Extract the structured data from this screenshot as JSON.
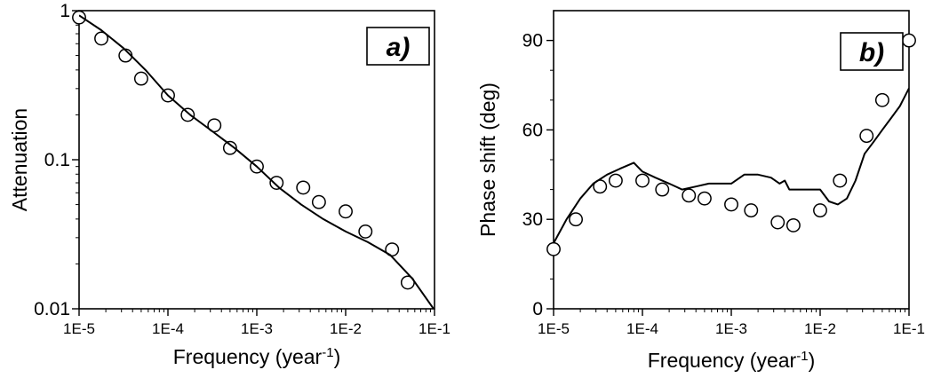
{
  "chart_data": [
    {
      "type": "scatter",
      "panel_label": "a)",
      "xlabel": "Frequency (year",
      "xlabel_sup": "-1",
      "xlabel_close": ")",
      "ylabel": "Attenuation",
      "xscale": "log",
      "yscale": "log",
      "xlim": [
        1e-05,
        0.1
      ],
      "ylim": [
        0.01,
        1
      ],
      "xticks": [
        1e-05,
        0.0001,
        0.001,
        0.01,
        0.1
      ],
      "xtick_labels": [
        "1E-5",
        "1E-4",
        "1E-3",
        "1E-2",
        "1E-1"
      ],
      "yticks": [
        0.01,
        0.1,
        1
      ],
      "ytick_labels": [
        "0.01",
        "0.1",
        "1"
      ],
      "series": [
        {
          "style": "markers",
          "x": [
            1e-05,
            1.78e-05,
            3.33e-05,
            5e-05,
            0.0001,
            0.000167,
            0.000333,
            0.0005,
            0.001,
            0.00167,
            0.00333,
            0.005,
            0.01,
            0.0167,
            0.0333,
            0.05
          ],
          "y": [
            0.9,
            0.65,
            0.5,
            0.35,
            0.27,
            0.2,
            0.17,
            0.12,
            0.09,
            0.07,
            0.065,
            0.052,
            0.045,
            0.033,
            0.025,
            0.015
          ]
        },
        {
          "style": "line",
          "x": [
            1e-05,
            1.78e-05,
            3.16e-05,
            5.6e-05,
            0.0001,
            0.000178,
            0.000316,
            0.00056,
            0.001,
            0.00178,
            0.00316,
            0.0056,
            0.01,
            0.0178,
            0.0316,
            0.056,
            0.1
          ],
          "y": [
            0.93,
            0.74,
            0.56,
            0.4,
            0.27,
            0.2,
            0.155,
            0.12,
            0.09,
            0.065,
            0.05,
            0.04,
            0.033,
            0.028,
            0.023,
            0.016,
            0.0098
          ]
        }
      ]
    },
    {
      "type": "scatter",
      "panel_label": "b)",
      "xlabel": "Frequency (year",
      "xlabel_sup": "-1",
      "xlabel_close": ")",
      "ylabel": "Phase shift (deg)",
      "xscale": "log",
      "yscale": "linear",
      "xlim": [
        1e-05,
        0.1
      ],
      "ylim": [
        0,
        100
      ],
      "xticks": [
        1e-05,
        0.0001,
        0.001,
        0.01,
        0.1
      ],
      "xtick_labels": [
        "1E-5",
        "1E-4",
        "1E-3",
        "1E-2",
        "1E-1"
      ],
      "yticks": [
        0,
        30,
        60,
        90
      ],
      "ytick_labels": [
        "0",
        "30",
        "60",
        "90"
      ],
      "series": [
        {
          "style": "markers",
          "x": [
            1e-05,
            1.78e-05,
            3.33e-05,
            5e-05,
            0.0001,
            0.000167,
            0.000333,
            0.0005,
            0.001,
            0.00167,
            0.00333,
            0.005,
            0.01,
            0.0167,
            0.0333,
            0.05,
            0.1
          ],
          "y": [
            20,
            30,
            41,
            43,
            43,
            40,
            38,
            37,
            35,
            33,
            29,
            28,
            33,
            43,
            58,
            70,
            90
          ]
        },
        {
          "style": "line",
          "x": [
            1e-05,
            1.4e-05,
            2e-05,
            2.8e-05,
            4e-05,
            5.6e-05,
            8e-05,
            0.0001,
            0.00014,
            0.0002,
            0.00028,
            0.0004,
            0.00056,
            0.0008,
            0.001,
            0.0014,
            0.002,
            0.0028,
            0.0035,
            0.004,
            0.0045,
            0.0056,
            0.008,
            0.01,
            0.0126,
            0.0158,
            0.02,
            0.025,
            0.0316,
            0.04,
            0.05,
            0.063,
            0.079,
            0.1
          ],
          "y": [
            22,
            30,
            37,
            42,
            45,
            47,
            49,
            46,
            44,
            42,
            40,
            41,
            42,
            42,
            42,
            45,
            45,
            44,
            42,
            43,
            40,
            40,
            40,
            40,
            36,
            35,
            37,
            43,
            52,
            56,
            60,
            64,
            68,
            74
          ]
        }
      ]
    }
  ]
}
